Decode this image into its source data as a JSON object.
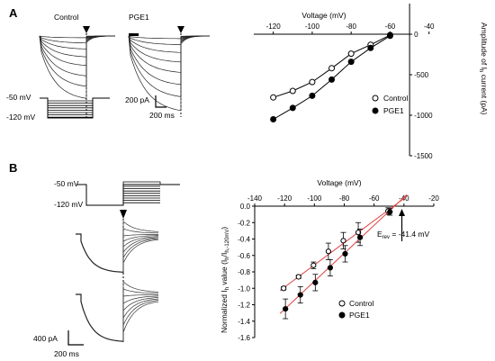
{
  "panels": {
    "a": "A",
    "b": "B"
  },
  "traces_a": {
    "control_label": "Control",
    "pge1_label": "PGE1",
    "protocol_hold": "-50 mV",
    "protocol_step": "-120 mV",
    "scale_current": "200 pA",
    "scale_time": "200 ms"
  },
  "traces_b": {
    "protocol_hold": "-50 mV",
    "protocol_step": "-120 mV",
    "scale_current": "400 pA",
    "scale_time": "200 ms"
  },
  "chart_data": [
    {
      "type": "line",
      "xlabel": "Voltage (mV)",
      "ylabel_parts": [
        "Amplitude of I",
        "h",
        " current (pA)"
      ],
      "xlim": [
        -130,
        -20
      ],
      "ylim": [
        -1500,
        0
      ],
      "xticks": [
        -120,
        -100,
        -80,
        -60,
        -40
      ],
      "yticks": [
        0,
        -500,
        -1000,
        -1500
      ],
      "x": [
        -120,
        -110,
        -100,
        -90,
        -80,
        -70,
        -60
      ],
      "series": [
        {
          "name": "Control",
          "marker": "open-circle",
          "values": [
            -780,
            -700,
            -590,
            -420,
            -240,
            -130,
            -10
          ]
        },
        {
          "name": "PGE1",
          "marker": "filled-circle",
          "values": [
            -1050,
            -910,
            -760,
            -560,
            -340,
            -170,
            -20
          ]
        }
      ],
      "legend_position": "bottom-right"
    },
    {
      "type": "scatter",
      "xlabel": "Voltage (mV)",
      "ylabel_parts": [
        "Normalized I",
        "h",
        " value (I",
        "h",
        "/I",
        "h,-120mV",
        ")"
      ],
      "xlim": [
        -140,
        -20
      ],
      "ylim": [
        -1.6,
        0
      ],
      "xticks": [
        -140,
        -120,
        -100,
        -80,
        -60,
        -40,
        -20
      ],
      "yticks": [
        0.0,
        -0.2,
        -0.4,
        -0.6,
        -0.8,
        -1.0,
        -1.2,
        -1.4,
        -1.6
      ],
      "x": [
        -120,
        -110,
        -100,
        -90,
        -80,
        -70,
        -50
      ],
      "series": [
        {
          "name": "Control",
          "marker": "open-circle",
          "values": [
            -1.0,
            -0.86,
            -0.72,
            -0.55,
            -0.42,
            -0.32,
            -0.06
          ],
          "errors": [
            0.02,
            0.02,
            0.04,
            0.1,
            0.1,
            0.12,
            0.04
          ]
        },
        {
          "name": "PGE1",
          "marker": "filled-circle",
          "values": [
            -1.25,
            -1.08,
            -0.93,
            -0.75,
            -0.58,
            -0.38,
            -0.07
          ],
          "errors": [
            0.12,
            0.1,
            0.1,
            0.1,
            0.1,
            0.1,
            0.04
          ]
        }
      ],
      "fit_color": "#e04040",
      "annotation_parts": [
        "E",
        "rev",
        " = -41.4 mV"
      ],
      "annotation_x": -41.4,
      "legend_position": "bottom-right"
    }
  ]
}
